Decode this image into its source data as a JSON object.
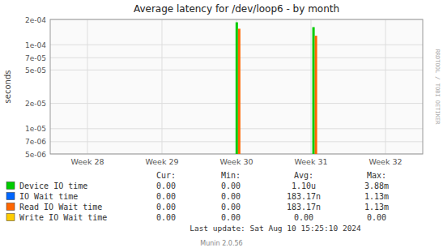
{
  "chart_data": {
    "type": "bar",
    "title": "Average latency for /dev/loop6 - by month",
    "y_label": "seconds",
    "log": "y",
    "grid": true,
    "legend": "bottom",
    "xlim": [
      -0.5,
      4.5
    ],
    "xticks": [
      {
        "value": 0,
        "label": "Week 28"
      },
      {
        "value": 1,
        "label": "Week 29"
      },
      {
        "value": 2,
        "label": "Week 30"
      },
      {
        "value": 3,
        "label": "Week 31"
      },
      {
        "value": 4,
        "label": "Week 32"
      }
    ],
    "ylim": [
      5e-06,
      0.0002
    ],
    "yticks": [
      {
        "value": 5e-06,
        "label": "5e-06"
      },
      {
        "value": 7e-06,
        "label": "7e-06"
      },
      {
        "value": 1e-05,
        "label": "1e-05"
      },
      {
        "value": 2e-05,
        "label": "2e-05"
      },
      {
        "value": 5e-05,
        "label": "5e-05"
      },
      {
        "value": 7e-05,
        "label": "7e-05"
      },
      {
        "value": 0.0001,
        "label": "1e-04"
      },
      {
        "value": 0.0002,
        "label": "2e-04"
      }
    ],
    "series": [
      {
        "name": "Device IO time",
        "color": "#00cc00",
        "x": [
          2.02,
          3.05
        ],
        "values": [
          0.000185,
          0.000162
        ]
      },
      {
        "name": "IO Wait time",
        "color": "#0066ff",
        "x": [],
        "values": []
      },
      {
        "name": "Read IO Wait time",
        "color": "#ff6600",
        "x": [
          2.02,
          3.05
        ],
        "values": [
          0.000155,
          0.000128
        ]
      },
      {
        "name": "Write IO Wait time",
        "color": "#ffcc00",
        "x": [],
        "values": []
      }
    ],
    "legend_table": {
      "columns": [
        "Cur:",
        "Min:",
        "Avg:",
        "Max:"
      ],
      "rows": [
        [
          "0.00",
          "0.00",
          "1.10u",
          "3.88m"
        ],
        [
          "0.00",
          "0.00",
          "183.17n",
          "1.13m"
        ],
        [
          "0.00",
          "0.00",
          "183.17n",
          "1.13m"
        ],
        [
          "0.00",
          "0.00",
          "0.00",
          "0.00"
        ]
      ]
    },
    "annotations": [
      "Last update: Sat Aug 10 15:25:10 2024",
      "Munin 2.0.56",
      "RRDTOOL / TOBI OETIKER"
    ]
  }
}
